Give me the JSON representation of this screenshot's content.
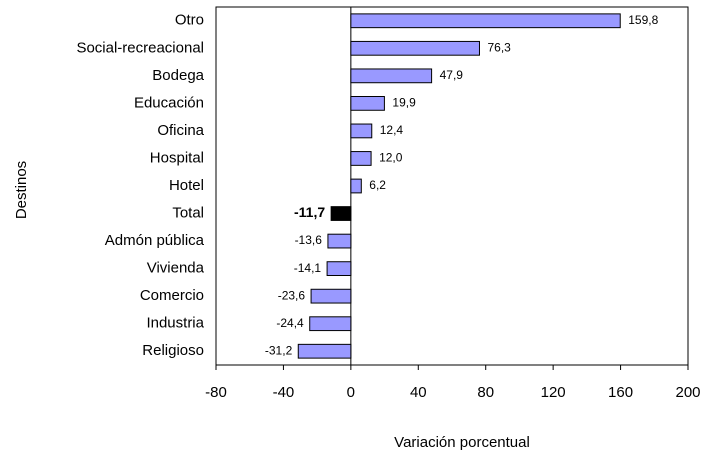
{
  "chart_data": {
    "type": "bar",
    "orientation": "horizontal",
    "x_label": "Variación porcentual",
    "y_label": "Destinos",
    "categories": [
      "Otro",
      "Social-recreacional",
      "Bodega",
      "Educación",
      "Oficina",
      "Hospital",
      "Hotel",
      "Total",
      "Admón pública",
      "Vivienda",
      "Comercio",
      "Industria",
      "Religioso"
    ],
    "values": [
      159.8,
      76.3,
      47.9,
      19.9,
      12.4,
      12.0,
      6.2,
      -11.7,
      -13.6,
      -14.1,
      -23.6,
      -24.4,
      -31.2
    ],
    "value_labels": [
      "159,8",
      "76,3",
      "47,9",
      "19,9",
      "12,4",
      "12,0",
      "6,2",
      "-11,7",
      "-13,6",
      "-14,1",
      "-23,6",
      "-24,4",
      "-31,2"
    ],
    "colors": [
      "#9999ff",
      "#9999ff",
      "#9999ff",
      "#9999ff",
      "#9999ff",
      "#9999ff",
      "#9999ff",
      "#000000",
      "#9999ff",
      "#9999ff",
      "#9999ff",
      "#9999ff",
      "#9999ff"
    ],
    "xlim": [
      -80,
      200
    ],
    "xticks": [
      -80,
      -40,
      0,
      40,
      80,
      120,
      160,
      200
    ],
    "grid": false
  }
}
